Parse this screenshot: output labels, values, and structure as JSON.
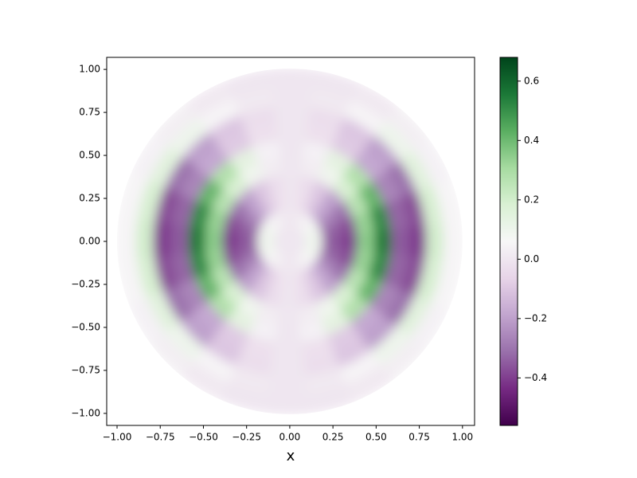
{
  "chart_data": {
    "type": "polar_heatmap",
    "x_label": "x",
    "xlim": [
      -1.06,
      1.07
    ],
    "ylim": [
      -1.07,
      1.07
    ],
    "xticks": [
      {
        "value": -1.0,
        "label": "−1.00"
      },
      {
        "value": -0.75,
        "label": "−0.75"
      },
      {
        "value": -0.5,
        "label": "−0.50"
      },
      {
        "value": -0.25,
        "label": "−0.25"
      },
      {
        "value": 0,
        "label": "0.00"
      },
      {
        "value": 0.25,
        "label": "0.25"
      },
      {
        "value": 0.5,
        "label": "0.50"
      },
      {
        "value": 0.75,
        "label": "0.75"
      },
      {
        "value": 1.0,
        "label": "1.00"
      }
    ],
    "yticks": [
      {
        "value": -1.0,
        "label": "−1.00"
      },
      {
        "value": -0.75,
        "label": "−0.75"
      },
      {
        "value": -0.5,
        "label": "−0.50"
      },
      {
        "value": -0.25,
        "label": "−0.25"
      },
      {
        "value": 0,
        "label": "0.00"
      },
      {
        "value": 0.25,
        "label": "0.25"
      },
      {
        "value": 0.5,
        "label": "0.50"
      },
      {
        "value": 0.75,
        "label": "0.75"
      },
      {
        "value": 1.0,
        "label": "1.00"
      }
    ],
    "colormap": [
      "#40004b",
      "#762a83",
      "#9970ab",
      "#c2a5cf",
      "#e7d4e8",
      "#f7f7f7",
      "#d9f0d3",
      "#a6dba0",
      "#5aae61",
      "#1b7837",
      "#00441b"
    ],
    "clim": [
      -0.56,
      0.68
    ],
    "cbar_ticks": [
      {
        "value": -0.4,
        "label": "−0.4"
      },
      {
        "value": -0.2,
        "label": "−0.2"
      },
      {
        "value": 0,
        "label": "0.0"
      },
      {
        "value": 0.2,
        "label": "0.2"
      },
      {
        "value": 0.4,
        "label": "0.4"
      },
      {
        "value": 0.6,
        "label": "0.6"
      }
    ],
    "r": [
      0.05,
      0.15,
      0.25,
      0.35,
      0.45,
      0.55,
      0.65,
      0.75,
      0.85,
      0.95
    ],
    "theta": [
      0,
      15,
      30,
      45,
      60,
      75,
      90,
      105,
      120,
      135,
      150,
      165,
      180,
      195,
      210,
      225,
      240,
      255,
      270,
      285,
      300,
      315,
      330,
      345
    ],
    "values": [
      [
        0,
        0,
        0,
        0,
        0,
        0,
        0,
        0,
        0,
        0,
        0,
        0,
        0,
        0,
        0,
        0,
        0,
        0,
        0,
        0,
        0,
        0,
        0,
        0
      ],
      [
        0.1,
        0.09,
        0.08,
        0.05,
        0.03,
        0.01,
        0,
        0.01,
        0.03,
        0.05,
        0.08,
        0.09,
        0.1,
        0.09,
        0.08,
        0.05,
        0.03,
        0.01,
        0,
        0.01,
        0.03,
        0.05,
        0.08,
        0.09
      ],
      [
        -0.35,
        -0.33,
        -0.26,
        -0.18,
        -0.09,
        -0.02,
        0,
        -0.02,
        -0.09,
        -0.18,
        -0.26,
        -0.33,
        -0.35,
        -0.33,
        -0.26,
        -0.18,
        -0.09,
        -0.02,
        0,
        -0.02,
        -0.09,
        -0.18,
        -0.26,
        -0.33
      ],
      [
        -0.4,
        -0.37,
        -0.3,
        -0.2,
        -0.1,
        -0.03,
        0,
        -0.03,
        -0.1,
        -0.2,
        -0.3,
        -0.37,
        -0.4,
        -0.37,
        -0.3,
        -0.2,
        -0.1,
        -0.03,
        0,
        -0.03,
        -0.1,
        -0.2,
        -0.3,
        -0.37
      ],
      [
        0.35,
        0.33,
        0.26,
        0.18,
        0.09,
        0.02,
        0,
        0.02,
        0.09,
        0.18,
        0.26,
        0.33,
        0.35,
        0.33,
        0.26,
        0.18,
        0.09,
        0.02,
        0,
        0.02,
        0.09,
        0.18,
        0.26,
        0.33
      ],
      [
        0.55,
        0.51,
        0.41,
        0.28,
        0.14,
        0.04,
        0,
        0.04,
        0.14,
        0.28,
        0.41,
        0.51,
        0.55,
        0.51,
        0.41,
        0.28,
        0.14,
        0.04,
        0,
        0.04,
        0.14,
        0.28,
        0.41,
        0.51
      ],
      [
        -0.35,
        -0.33,
        -0.26,
        -0.18,
        -0.09,
        -0.02,
        0,
        -0.02,
        -0.09,
        -0.18,
        -0.26,
        -0.33,
        -0.35,
        -0.33,
        -0.26,
        -0.18,
        -0.09,
        -0.02,
        0,
        -0.02,
        -0.09,
        -0.18,
        -0.26,
        -0.33
      ],
      [
        -0.4,
        -0.37,
        -0.3,
        -0.2,
        -0.1,
        -0.03,
        0,
        -0.03,
        -0.1,
        -0.2,
        -0.3,
        -0.37,
        -0.4,
        -0.37,
        -0.3,
        -0.2,
        -0.1,
        -0.03,
        0,
        -0.03,
        -0.1,
        -0.2,
        -0.3,
        -0.37
      ],
      [
        0.2,
        0.19,
        0.15,
        0.1,
        0.05,
        0.01,
        0,
        0.01,
        0.05,
        0.1,
        0.15,
        0.19,
        0.2,
        0.19,
        0.15,
        0.1,
        0.05,
        0.01,
        0,
        0.01,
        0.05,
        0.1,
        0.15,
        0.19
      ],
      [
        0.05,
        0.05,
        0.04,
        0.03,
        0.01,
        0,
        0,
        0,
        0.01,
        0.03,
        0.04,
        0.05,
        0.05,
        0.05,
        0.04,
        0.03,
        0.01,
        0,
        0,
        0,
        0.01,
        0.03,
        0.04,
        0.05
      ]
    ]
  }
}
